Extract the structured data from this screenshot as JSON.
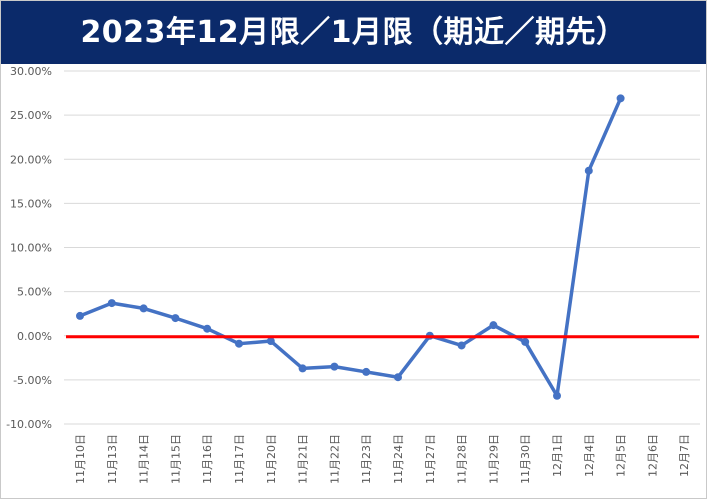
{
  "chart_data": {
    "type": "line",
    "title": "2023年12月限／1月限（期近／期先）",
    "categories": [
      "11月10日",
      "11月13日",
      "11月14日",
      "11月15日",
      "11月16日",
      "11月17日",
      "11月20日",
      "11月21日",
      "11月22日",
      "11月23日",
      "11月24日",
      "11月27日",
      "11月28日",
      "11月29日",
      "11月30日",
      "12月1日",
      "12月4日",
      "12月5日",
      "12月6日",
      "12月7日"
    ],
    "series": [
      {
        "values": [
          0.0225,
          0.037,
          0.031,
          0.02,
          0.008,
          -0.009,
          -0.006,
          -0.037,
          -0.035,
          -0.041,
          -0.047,
          0.0,
          -0.011,
          0.012,
          -0.007,
          -0.068,
          0.187,
          0.269,
          null,
          null
        ],
        "color": "#4472c4"
      }
    ],
    "ylim": [
      -0.1,
      0.3
    ],
    "yticks": [
      "30.00%",
      "25.00%",
      "20.00%",
      "15.00%",
      "10.00%",
      "5.00%",
      "0.00%",
      "-5.00%",
      "-10.00%"
    ],
    "ytick_values": [
      0.3,
      0.25,
      0.2,
      0.15,
      0.1,
      0.05,
      0.0,
      -0.05,
      -0.1
    ],
    "reference_line": {
      "value": 0.0,
      "color": "#ff0000"
    },
    "grid": true,
    "legend": "none",
    "colors": {
      "title_bar": "#0b2a6a",
      "title_text": "#ffffff",
      "gridline": "#d9d9d9"
    }
  }
}
